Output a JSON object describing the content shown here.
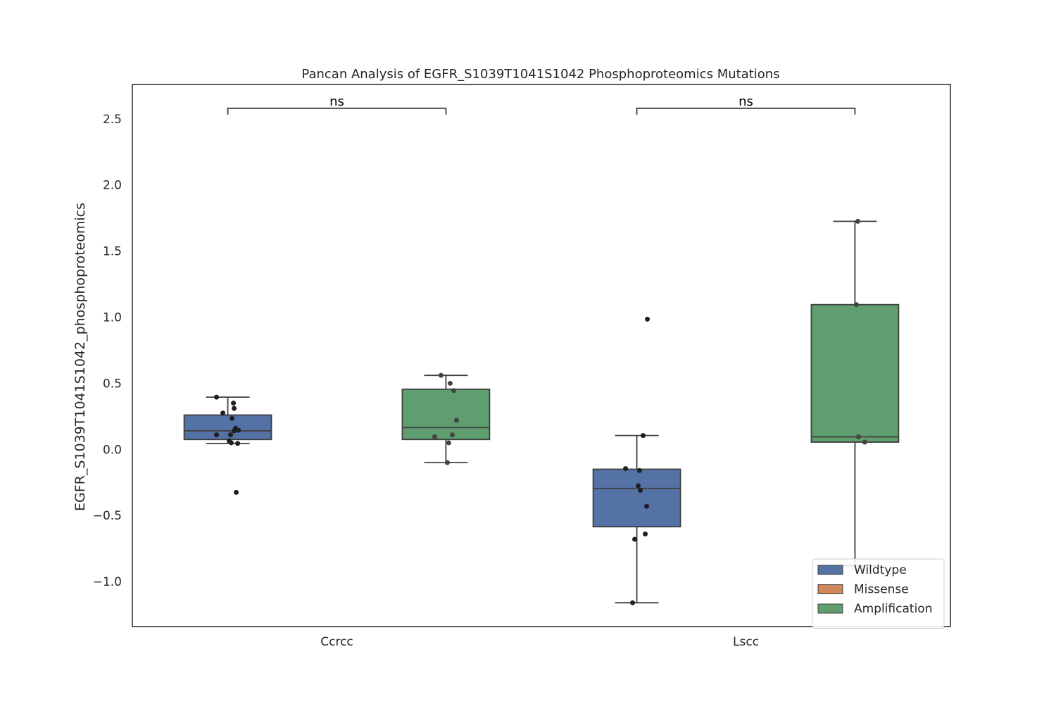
{
  "chart_data": {
    "type": "box",
    "title": "Pancan Analysis of EGFR_S1039T1041S1042 Phosphoproteomics Mutations",
    "xlabel": "",
    "ylabel": "EGFR_S1039T1041S1042_phosphoproteomics",
    "ylim": [
      -1.34,
      2.76
    ],
    "yticks": [
      -1.0,
      -0.5,
      0.0,
      0.5,
      1.0,
      1.5,
      2.0,
      2.5
    ],
    "ytick_labels": [
      "−1.0",
      "−0.5",
      "0.0",
      "0.5",
      "1.0",
      "1.5",
      "2.0",
      "2.5"
    ],
    "categories": [
      "Ccrcc",
      "Lscc"
    ],
    "grid": false,
    "legend": {
      "placement": "lower-right",
      "entries": [
        {
          "name": "Wildtype",
          "color": "#5572a6"
        },
        {
          "name": "Missense",
          "color": "#d1885c"
        },
        {
          "name": "Amplification",
          "color": "#5f9e6e"
        }
      ]
    },
    "boxes": [
      {
        "category": "Ccrcc",
        "group": "Wildtype",
        "color": "#5572a6",
        "q1": 0.075,
        "median": 0.14,
        "q3": 0.26,
        "whisker_low": 0.045,
        "whisker_high": 0.395,
        "points": [
          0.395,
          0.35,
          0.31,
          0.275,
          0.235,
          0.16,
          0.145,
          0.14,
          0.11,
          0.11,
          0.065,
          0.05,
          0.045,
          -0.325
        ]
      },
      {
        "category": "Ccrcc",
        "group": "Amplification",
        "color": "#5f9e6e",
        "q1": 0.075,
        "median": 0.165,
        "q3": 0.455,
        "whisker_low": -0.1,
        "whisker_high": 0.56,
        "points": [
          0.56,
          0.5,
          0.445,
          0.22,
          0.11,
          0.095,
          0.05,
          -0.1
        ]
      },
      {
        "category": "Lscc",
        "group": "Wildtype",
        "color": "#5572a6",
        "q1": -0.585,
        "median": -0.295,
        "q3": -0.15,
        "whisker_low": -1.16,
        "whisker_high": 0.105,
        "points": [
          0.985,
          0.105,
          -0.145,
          -0.16,
          -0.275,
          -0.31,
          -0.43,
          -0.64,
          -0.68,
          -1.16
        ]
      },
      {
        "category": "Lscc",
        "group": "Amplification",
        "color": "#5f9e6e",
        "q1": 0.055,
        "median": 0.095,
        "q3": 1.095,
        "whisker_low": -0.88,
        "whisker_high": 1.725,
        "points": [
          1.725,
          1.095,
          0.095,
          0.055
        ]
      }
    ],
    "annotations": [
      {
        "category": "Ccrcc",
        "text": "ns",
        "y": 2.58
      },
      {
        "category": "Lscc",
        "text": "ns",
        "y": 2.58
      }
    ]
  }
}
